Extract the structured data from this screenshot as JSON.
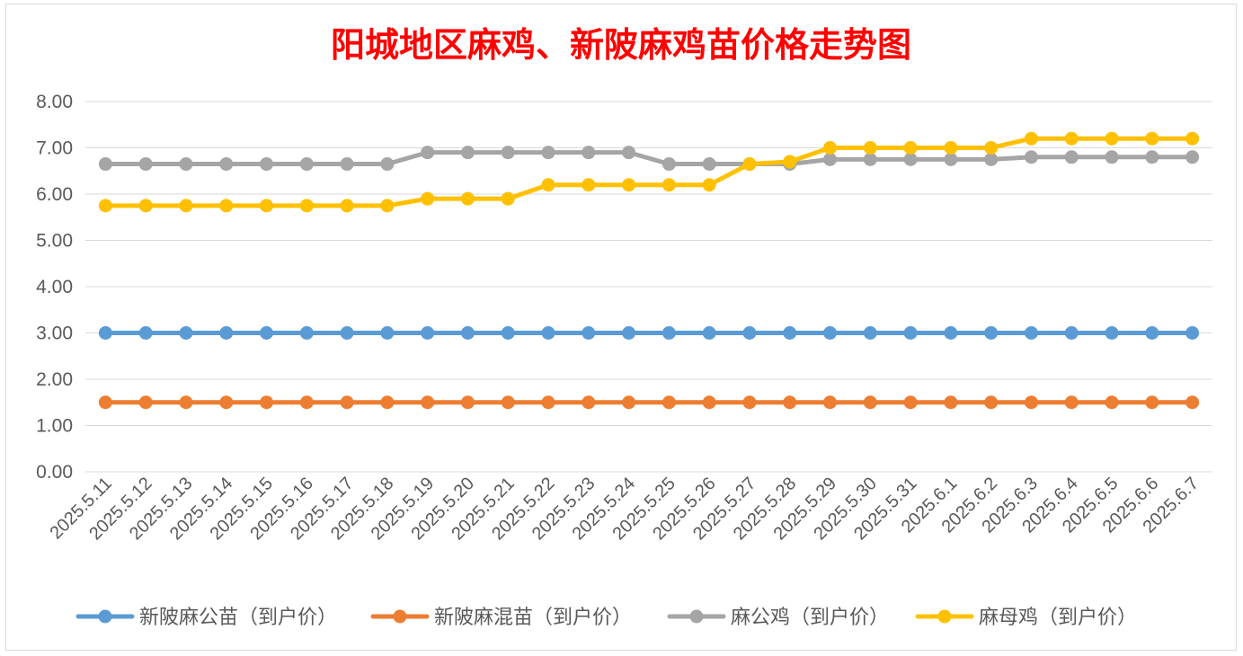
{
  "chart_data": {
    "type": "line",
    "title": "阳城地区麻鸡、新陂麻鸡苗价格走势图",
    "xlabel": "",
    "ylabel": "",
    "ylim": [
      0,
      8
    ],
    "y_ticks": [
      "0.00",
      "1.00",
      "2.00",
      "3.00",
      "4.00",
      "5.00",
      "6.00",
      "7.00",
      "8.00"
    ],
    "y_tick_values": [
      0,
      1,
      2,
      3,
      4,
      5,
      6,
      7,
      8
    ],
    "grid": true,
    "legend_position": "bottom",
    "categories": [
      "2025.5.11",
      "2025.5.12",
      "2025.5.13",
      "2025.5.14",
      "2025.5.15",
      "2025.5.16",
      "2025.5.17",
      "2025.5.18",
      "2025.5.19",
      "2025.5.20",
      "2025.5.21",
      "2025.5.22",
      "2025.5.23",
      "2025.5.24",
      "2025.5.25",
      "2025.5.26",
      "2025.5.27",
      "2025.5.28",
      "2025.5.29",
      "2025.5.30",
      "2025.5.31",
      "2025.6.1",
      "2025.6.2",
      "2025.6.3",
      "2025.6.4",
      "2025.6.5",
      "2025.6.6",
      "2025.6.7"
    ],
    "series": [
      {
        "name": "新陂麻公苗（到户价）",
        "color": "#5b9bd5",
        "values": [
          3,
          3,
          3,
          3,
          3,
          3,
          3,
          3,
          3,
          3,
          3,
          3,
          3,
          3,
          3,
          3,
          3,
          3,
          3,
          3,
          3,
          3,
          3,
          3,
          3,
          3,
          3,
          3
        ]
      },
      {
        "name": "新陂麻混苗（到户价）",
        "color": "#ed7d31",
        "values": [
          1.5,
          1.5,
          1.5,
          1.5,
          1.5,
          1.5,
          1.5,
          1.5,
          1.5,
          1.5,
          1.5,
          1.5,
          1.5,
          1.5,
          1.5,
          1.5,
          1.5,
          1.5,
          1.5,
          1.5,
          1.5,
          1.5,
          1.5,
          1.5,
          1.5,
          1.5,
          1.5,
          1.5
        ]
      },
      {
        "name": "麻公鸡（到户价）",
        "color": "#a5a5a5",
        "values": [
          6.65,
          6.65,
          6.65,
          6.65,
          6.65,
          6.65,
          6.65,
          6.65,
          6.9,
          6.9,
          6.9,
          6.9,
          6.9,
          6.9,
          6.65,
          6.65,
          6.65,
          6.65,
          6.75,
          6.75,
          6.75,
          6.75,
          6.75,
          6.8,
          6.8,
          6.8,
          6.8,
          6.8
        ]
      },
      {
        "name": "麻母鸡（到户价）",
        "color": "#ffc000",
        "values": [
          5.75,
          5.75,
          5.75,
          5.75,
          5.75,
          5.75,
          5.75,
          5.75,
          5.9,
          5.9,
          5.9,
          6.2,
          6.2,
          6.2,
          6.2,
          6.2,
          6.65,
          6.7,
          7.0,
          7.0,
          7.0,
          7.0,
          7.0,
          7.2,
          7.2,
          7.2,
          7.2,
          7.2
        ]
      }
    ]
  }
}
